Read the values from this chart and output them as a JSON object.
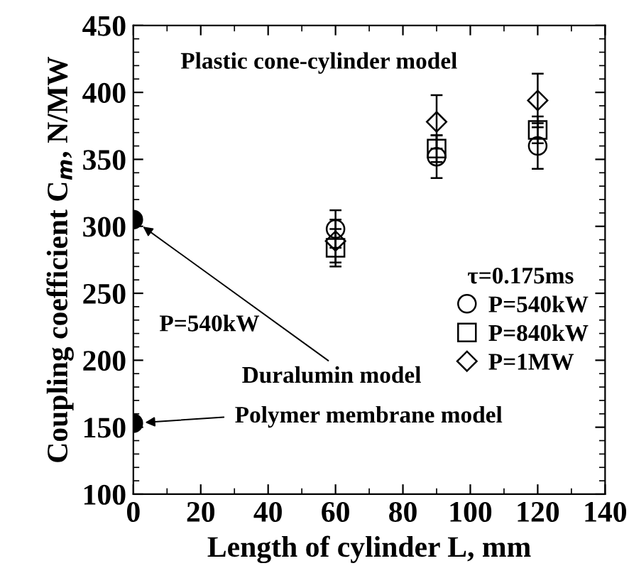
{
  "chart_data": {
    "type": "scatter",
    "xlabel": "Length of cylinder L, mm",
    "ylabel": "Coupling coefficient C$_{m}$, N/MW",
    "legend_title": "τ=0.175ms",
    "legend": "right",
    "grid": false,
    "xlim": [
      0,
      140
    ],
    "xticks": [
      0,
      20,
      40,
      60,
      80,
      100,
      120,
      140
    ],
    "ylim": [
      100,
      450
    ],
    "yticks": [
      100,
      150,
      200,
      250,
      300,
      350,
      400,
      450
    ],
    "series": [
      {
        "color": "#000000",
        "marker": "circle",
        "x": [
          0,
          0
        ],
        "values": [
          305,
          153
        ]
      },
      {
        "name": "P=540kW",
        "color": "#000000",
        "marker": "circle",
        "x": [
          60,
          90,
          120
        ],
        "values": [
          298,
          352,
          360
        ],
        "errors": [
          14,
          16,
          17
        ]
      },
      {
        "name": "P=840kW",
        "color": "#000000",
        "marker": "square",
        "x": [
          60,
          90,
          120
        ],
        "values": [
          284,
          358,
          372
        ],
        "errors": [
          14,
          10,
          10
        ]
      },
      {
        "name": "P=1MW",
        "color": "#000000",
        "marker": "diamond",
        "x": [
          60,
          90,
          120
        ],
        "values": [
          289,
          378,
          394
        ],
        "errors": [
          16,
          20,
          20
        ]
      }
    ],
    "annotations": [
      "Plastic cone-cylinder model",
      "P=540kW",
      "Duralumin model",
      "Polymer membrane model"
    ]
  }
}
